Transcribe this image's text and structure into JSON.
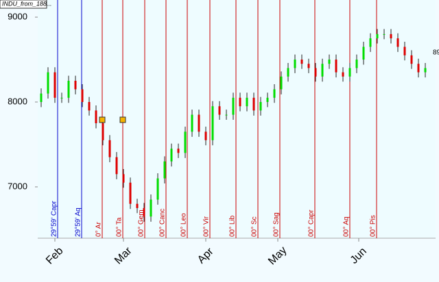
{
  "chart_data": {
    "type": "ohlc",
    "title": "INDU_from_188...",
    "price_label": "89",
    "x": [
      1,
      3,
      5,
      7,
      9,
      11,
      13,
      15,
      17,
      19,
      21,
      23,
      25,
      27,
      29,
      31,
      33,
      35,
      37,
      39,
      41,
      43,
      45,
      47,
      49,
      51,
      53,
      55,
      57,
      59,
      61,
      63,
      65,
      67,
      69,
      71,
      73,
      75,
      77,
      79,
      81,
      83,
      85,
      87,
      89,
      91,
      93,
      95,
      97,
      99,
      101,
      103,
      105,
      107,
      109,
      111,
      113
    ],
    "open": [
      8000,
      8100,
      8350,
      8050,
      8050,
      8250,
      8150,
      8000,
      7900,
      7750,
      7550,
      7350,
      7150,
      7050,
      6800,
      6750,
      6650,
      6850,
      7100,
      7300,
      7450,
      7400,
      7650,
      7850,
      7650,
      7550,
      7950,
      7850,
      7850,
      8050,
      7950,
      8050,
      7900,
      8000,
      8050,
      8150,
      8300,
      8400,
      8500,
      8450,
      8400,
      8300,
      8450,
      8500,
      8350,
      8300,
      8400,
      8500,
      8650,
      8750,
      8800,
      8800,
      8750,
      8650,
      8550,
      8450,
      8350
    ],
    "high": [
      8160,
      8410,
      8410,
      8110,
      8310,
      8310,
      8210,
      8060,
      7960,
      7810,
      7610,
      7410,
      7210,
      7110,
      6860,
      6810,
      6910,
      7160,
      7360,
      7510,
      7510,
      7710,
      7910,
      7910,
      7710,
      8010,
      8010,
      7910,
      8110,
      8110,
      8110,
      8110,
      8060,
      8110,
      8210,
      8360,
      8460,
      8560,
      8560,
      8510,
      8460,
      8510,
      8560,
      8560,
      8410,
      8460,
      8560,
      8710,
      8810,
      8860,
      8860,
      8860,
      8810,
      8710,
      8610,
      8510,
      8460
    ],
    "low": [
      7940,
      8040,
      7990,
      7990,
      7990,
      8090,
      7940,
      7840,
      7690,
      7490,
      7290,
      7090,
      6990,
      6740,
      6690,
      6590,
      6590,
      6790,
      7040,
      7240,
      7340,
      7340,
      7590,
      7590,
      7490,
      7490,
      7790,
      7790,
      7790,
      7890,
      7890,
      7840,
      7840,
      7940,
      7990,
      8090,
      8240,
      8340,
      8390,
      8340,
      8240,
      8240,
      8390,
      8290,
      8240,
      8240,
      8340,
      8440,
      8590,
      8690,
      8740,
      8690,
      8590,
      8490,
      8390,
      8290,
      8290
    ],
    "close": [
      8100,
      8350,
      8050,
      8050,
      8250,
      8150,
      8000,
      7900,
      7750,
      7550,
      7350,
      7150,
      7050,
      6800,
      6750,
      6650,
      6850,
      7100,
      7300,
      7450,
      7400,
      7650,
      7850,
      7650,
      7550,
      7950,
      7850,
      7850,
      8050,
      7950,
      8050,
      7900,
      8000,
      8050,
      8150,
      8300,
      8400,
      8500,
      8450,
      8400,
      8300,
      8450,
      8500,
      8350,
      8300,
      8400,
      8500,
      8650,
      8750,
      8800,
      8800,
      8750,
      8650,
      8550,
      8450,
      8350,
      8400
    ],
    "up_color": "#00dd00",
    "down_color": "#dd0000",
    "markers": {
      "x": [
        18.8,
        24.8
      ],
      "values": [
        7790,
        7790
      ],
      "color": "#f5b400"
    },
    "vlines": [
      {
        "x": 5.8,
        "label": "29°59' Capr",
        "color": "#0000cc"
      },
      {
        "x": 12.8,
        "label": "29°59' Aq",
        "color": "#0000cc"
      },
      {
        "x": 18.8,
        "label": "0° Ar",
        "color": "#cc0000"
      },
      {
        "x": 24.8,
        "label": "00° Ta",
        "color": "#cc0000"
      },
      {
        "x": 31.2,
        "label": "00° Gem",
        "color": "#cc0000"
      },
      {
        "x": 37.4,
        "label": "00° Canc",
        "color": "#cc0000"
      },
      {
        "x": 43.6,
        "label": "00° Leo",
        "color": "#cc0000"
      },
      {
        "x": 50.2,
        "label": "00° Vir",
        "color": "#cc0000"
      },
      {
        "x": 57.8,
        "label": "00° Lib",
        "color": "#cc0000"
      },
      {
        "x": 64.2,
        "label": "00° Sc",
        "color": "#cc0000"
      },
      {
        "x": 70.6,
        "label": "00° Sag",
        "color": "#cc0000"
      },
      {
        "x": 80.8,
        "label": "00° Capr",
        "color": "#cc0000"
      },
      {
        "x": 91,
        "label": "00° Aq",
        "color": "#cc0000"
      },
      {
        "x": 98.8,
        "label": "00° Pis",
        "color": "#cc0000"
      }
    ],
    "xlim": [
      0,
      116
    ],
    "xticks": [
      {
        "value": 5,
        "label": "Feb"
      },
      {
        "value": 25,
        "label": "Mar"
      },
      {
        "value": 49,
        "label": "Apr"
      },
      {
        "value": 70,
        "label": "May"
      },
      {
        "value": 93.6,
        "label": "Jun"
      }
    ],
    "ylim": [
      6395,
      9081
    ],
    "yticks": [
      7000,
      8000,
      9000
    ]
  }
}
